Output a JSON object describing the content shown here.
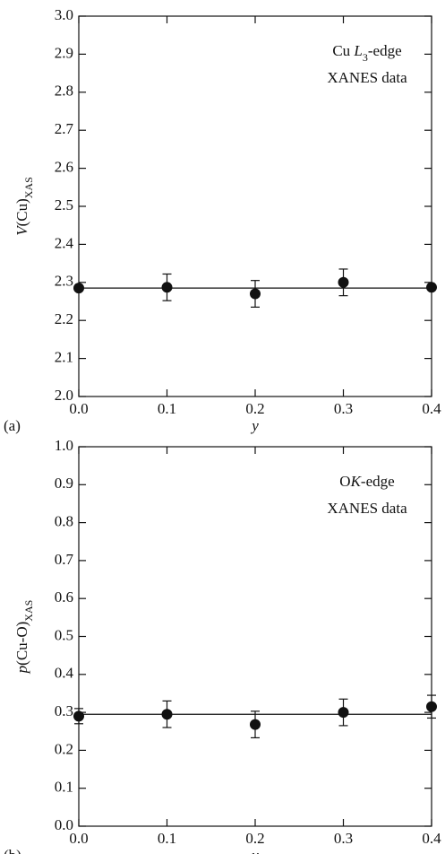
{
  "chart_data": [
    {
      "type": "scatter",
      "panel_label": "(a)",
      "xlabel": "y",
      "ylabel": [
        "V",
        "(Cu)",
        "XAS"
      ],
      "annotation": [
        [
          "Cu ",
          "L",
          "3",
          "-edge"
        ],
        [
          "XANES data"
        ]
      ],
      "x": [
        0,
        0.1,
        0.2,
        0.3,
        0.4
      ],
      "series": [
        {
          "color": "#111111",
          "values": [
            2.285,
            2.287,
            2.27,
            2.3,
            2.287
          ],
          "errors": [
            null,
            0.035,
            0.035,
            0.035,
            null
          ]
        }
      ],
      "hline": 2.285,
      "xlim": [
        0,
        0.4
      ],
      "xticks": [
        {
          "value": 0,
          "label": "0.0"
        },
        0.1,
        0.2,
        0.3,
        0.4
      ],
      "ylim": [
        2.0,
        3.0
      ],
      "yticks": [
        {
          "value": 2.0,
          "label": "2.0"
        },
        2.1,
        2.2,
        2.3,
        2.4,
        2.5,
        2.6,
        2.7,
        2.8,
        2.9,
        {
          "value": 3.0,
          "label": "3.0"
        }
      ]
    },
    {
      "type": "scatter",
      "panel_label": "(b)",
      "xlabel": "y",
      "ylabel": [
        "p",
        "(Cu-O)",
        "XAS"
      ],
      "annotation": [
        [
          "O",
          "K",
          "-edge"
        ],
        [
          "XANES data"
        ]
      ],
      "x": [
        0,
        0.1,
        0.2,
        0.3,
        0.4
      ],
      "series": [
        {
          "color": "#111111",
          "values": [
            0.29,
            0.295,
            0.268,
            0.3,
            0.315
          ],
          "errors": [
            0.02,
            0.035,
            0.035,
            0.035,
            0.03
          ]
        }
      ],
      "hline": 0.295,
      "xlim": [
        0,
        0.4
      ],
      "xticks": [
        {
          "value": 0,
          "label": "0.0"
        },
        0.1,
        0.2,
        0.3,
        0.4
      ],
      "ylim": [
        0,
        1.0
      ],
      "yticks": [
        {
          "value": 0,
          "label": "0.0"
        },
        0.1,
        0.2,
        0.3,
        0.4,
        0.5,
        0.6,
        0.7,
        0.8,
        0.9,
        {
          "value": 1.0,
          "label": "1.0"
        }
      ]
    }
  ]
}
